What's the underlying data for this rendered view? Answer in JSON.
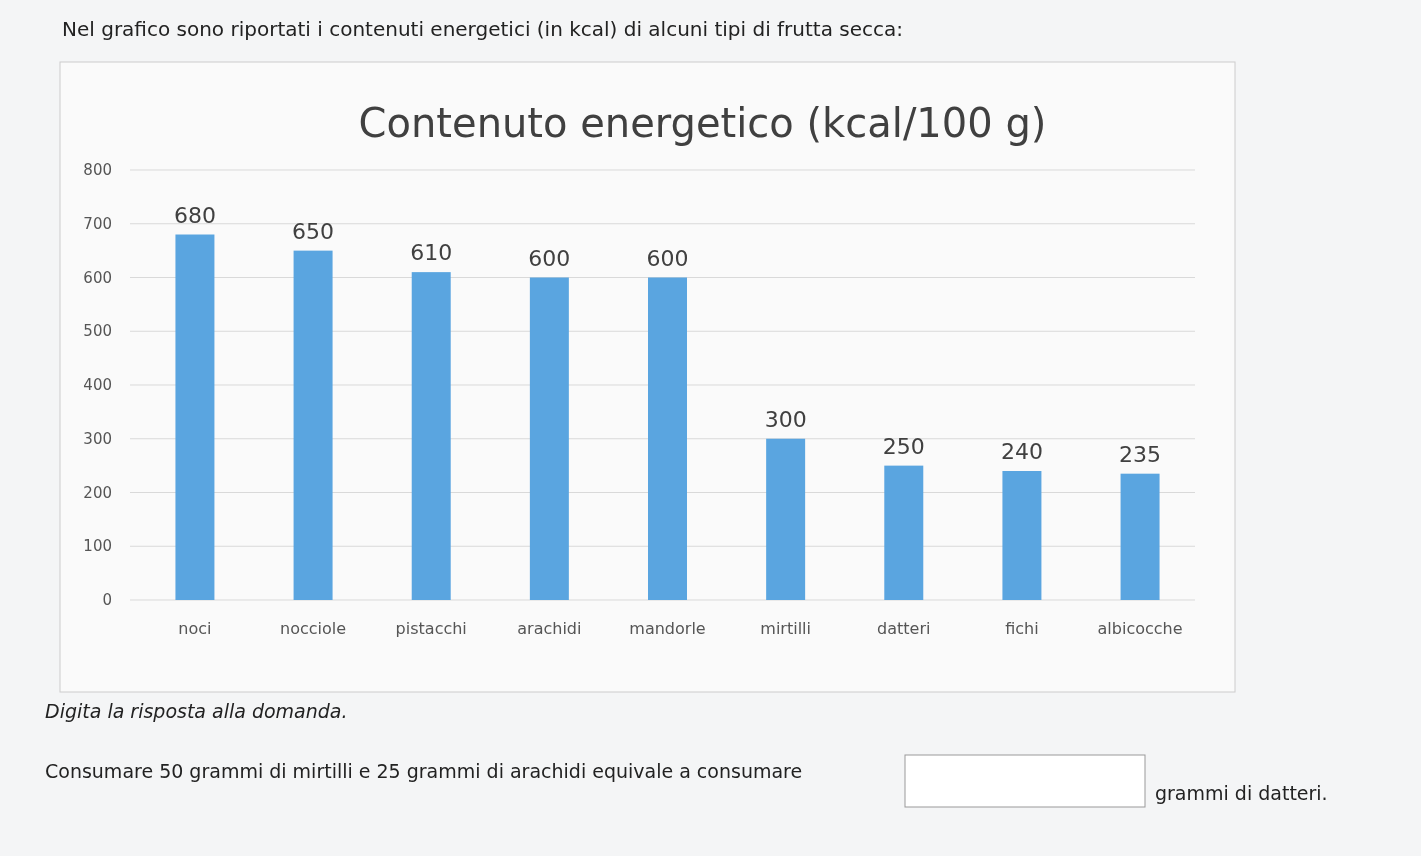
{
  "chart_data": {
    "type": "bar",
    "title": "Contenuto energetico (kcal/100 g)",
    "categories": [
      "noci",
      "nocciole",
      "pistacchi",
      "arachidi",
      "mandorle",
      "mirtilli",
      "datteri",
      "fichi",
      "albicocche"
    ],
    "values": [
      680,
      650,
      610,
      600,
      600,
      300,
      250,
      240,
      235
    ],
    "color": "#5aa5e0",
    "ylim": [
      0,
      800
    ],
    "yticks": [
      0,
      100,
      200,
      300,
      400,
      500,
      600,
      700,
      800
    ],
    "grid": "y",
    "data_labels": true,
    "annotations": [
      "Nel grafico sono riportati i contenuti energetici (in kcal) di alcuni tipi di frutta secca:",
      "Digita la risposta alla domanda.",
      "Consumare 50 grammi di mirtilli e 25 grammi di arachidi equivale a consumare",
      "grammi di datteri."
    ]
  }
}
